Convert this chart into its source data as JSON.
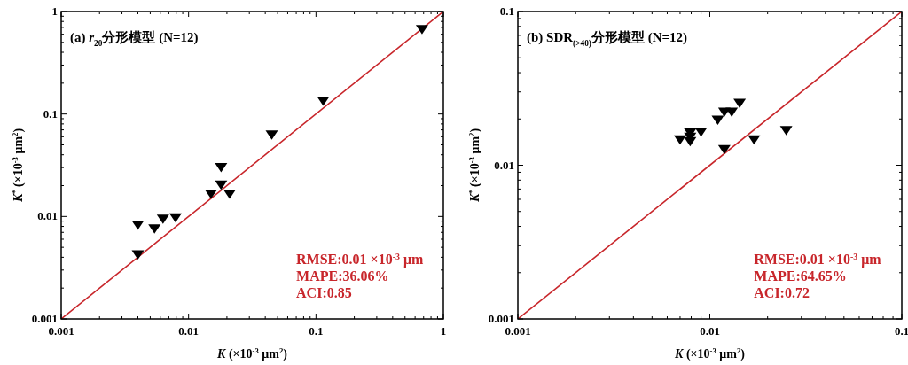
{
  "chart_data": [
    {
      "type": "scatter",
      "title": "(a) *r*$_{20}$分形模型 (N=12)",
      "xlabel": "*K* (×10$^{-3}$ μm$^{2}$)",
      "ylabel": "*K*$^{*}$ (×10$^{-3}$ μm$^{2}$)",
      "log": "xy",
      "xlim": [
        0.001,
        1
      ],
      "ylim": [
        0.001,
        1
      ],
      "xticks": [
        0.001,
        0.01,
        0.1,
        1
      ],
      "yticks": [
        0.001,
        0.01,
        0.1,
        1
      ],
      "series": [
        {
          "marker": "triangle",
          "color": "#000000",
          "x": [
            0.004,
            0.004,
            0.0054,
            0.0063,
            0.0079,
            0.015,
            0.018,
            0.018,
            0.021,
            0.045,
            0.114,
            0.68
          ],
          "values": [
            0.0084,
            0.0043,
            0.0077,
            0.0096,
            0.0099,
            0.0168,
            0.0306,
            0.0206,
            0.0168,
            0.0636,
            0.136,
            0.68
          ]
        },
        {
          "type": "line",
          "color": "#c8262b",
          "x": [
            0.001,
            1
          ],
          "values": [
            0.001,
            1
          ]
        }
      ],
      "annotations": [
        "RMSE:0.01 ×10$^{-3}$ μm",
        "MAPE:36.06%",
        "ACI:0.85"
      ]
    },
    {
      "type": "scatter",
      "title": "(b) SDR$_{(>40)}$分形模型 (N=12)",
      "xlabel": "*K* (×10$^{-3}$ μm$^{2}$)",
      "ylabel": "*K*$^{*}$ (×10$^{-3}$ μm$^{2}$)",
      "log": "xy",
      "xlim": [
        0.001,
        0.1
      ],
      "ylim": [
        0.001,
        0.1
      ],
      "xticks": [
        0.001,
        0.01,
        0.1
      ],
      "yticks": [
        0.001,
        0.01,
        0.1
      ],
      "series": [
        {
          "marker": "triangle",
          "color": "#000000",
          "x": [
            0.007,
            0.0079,
            0.0079,
            0.0079,
            0.009,
            0.011,
            0.0119,
            0.013,
            0.0143,
            0.0119,
            0.017,
            0.025
          ],
          "values": [
            0.0148,
            0.0164,
            0.0144,
            0.0154,
            0.0166,
            0.0199,
            0.0224,
            0.0224,
            0.0256,
            0.0128,
            0.0148,
            0.017
          ]
        },
        {
          "type": "line",
          "color": "#c8262b",
          "x": [
            0.001,
            0.1
          ],
          "values": [
            0.001,
            0.1
          ]
        }
      ],
      "annotations": [
        "RMSE:0.01 ×10$^{-3}$ μm",
        "MAPE:64.65%",
        "ACI:0.72"
      ]
    }
  ]
}
